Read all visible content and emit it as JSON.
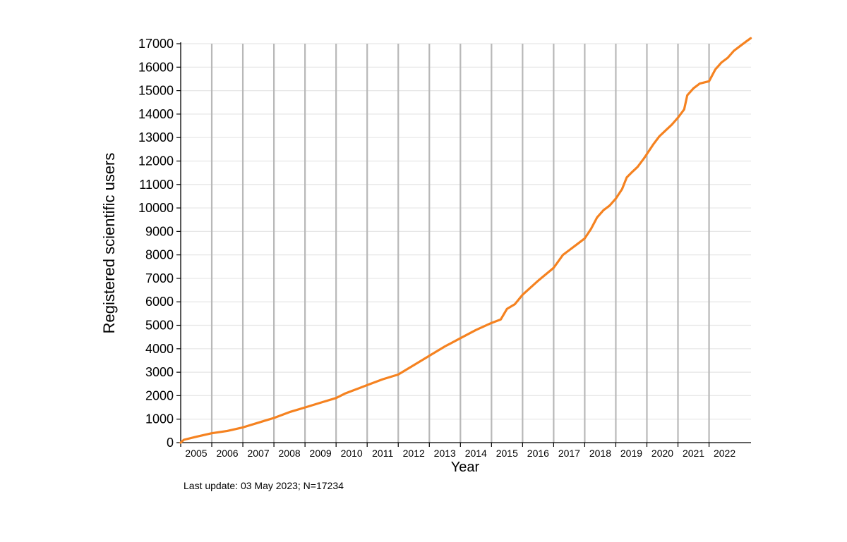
{
  "chart_data": {
    "type": "line",
    "title": "",
    "xlabel": "Year",
    "ylabel": "Registered scientific users",
    "xlim": [
      2005.0,
      2023.35
    ],
    "ylim": [
      0,
      17000
    ],
    "x_ticks": [
      2005,
      2006,
      2007,
      2008,
      2009,
      2010,
      2011,
      2012,
      2013,
      2014,
      2015,
      2016,
      2017,
      2018,
      2019,
      2020,
      2021,
      2022
    ],
    "y_ticks": [
      0,
      1000,
      2000,
      3000,
      4000,
      5000,
      6000,
      7000,
      8000,
      9000,
      10000,
      11000,
      12000,
      13000,
      14000,
      15000,
      16000,
      17000
    ],
    "grid": {
      "vertical": true,
      "horizontal": true
    },
    "line_color": "#f58220",
    "series": [
      {
        "x": [
          2005.0,
          2005.1,
          2005.5,
          2006.0,
          2006.5,
          2007.0,
          2007.5,
          2008.0,
          2008.5,
          2009.0,
          2009.5,
          2010.0,
          2010.3,
          2010.5,
          2011.0,
          2011.5,
          2012.0,
          2012.5,
          2013.0,
          2013.5,
          2014.0,
          2014.5,
          2015.0,
          2015.3,
          2015.5,
          2015.75,
          2016.0,
          2016.5,
          2017.0,
          2017.3,
          2017.5,
          2017.75,
          2018.0,
          2018.2,
          2018.4,
          2018.6,
          2018.8,
          2019.0,
          2019.2,
          2019.35,
          2019.5,
          2019.7,
          2019.9,
          2020.0,
          2020.2,
          2020.4,
          2020.6,
          2020.8,
          2021.0,
          2021.2,
          2021.3,
          2021.5,
          2021.7,
          2022.0,
          2022.2,
          2022.4,
          2022.6,
          2022.8,
          2023.0,
          2023.2,
          2023.34
        ],
        "y": [
          0,
          120,
          250,
          400,
          500,
          650,
          850,
          1050,
          1300,
          1500,
          1700,
          1900,
          2100,
          2200,
          2450,
          2700,
          2900,
          3300,
          3700,
          4100,
          4450,
          4800,
          5100,
          5250,
          5700,
          5900,
          6300,
          6900,
          7450,
          8000,
          8200,
          8450,
          8700,
          9100,
          9600,
          9900,
          10100,
          10400,
          10800,
          11300,
          11500,
          11750,
          12100,
          12300,
          12700,
          13050,
          13300,
          13550,
          13850,
          14200,
          14800,
          15100,
          15300,
          15400,
          15900,
          16200,
          16400,
          16700,
          16900,
          17100,
          17234
        ]
      }
    ],
    "footnote": "Last update: 03 May 2023; N=17234"
  }
}
